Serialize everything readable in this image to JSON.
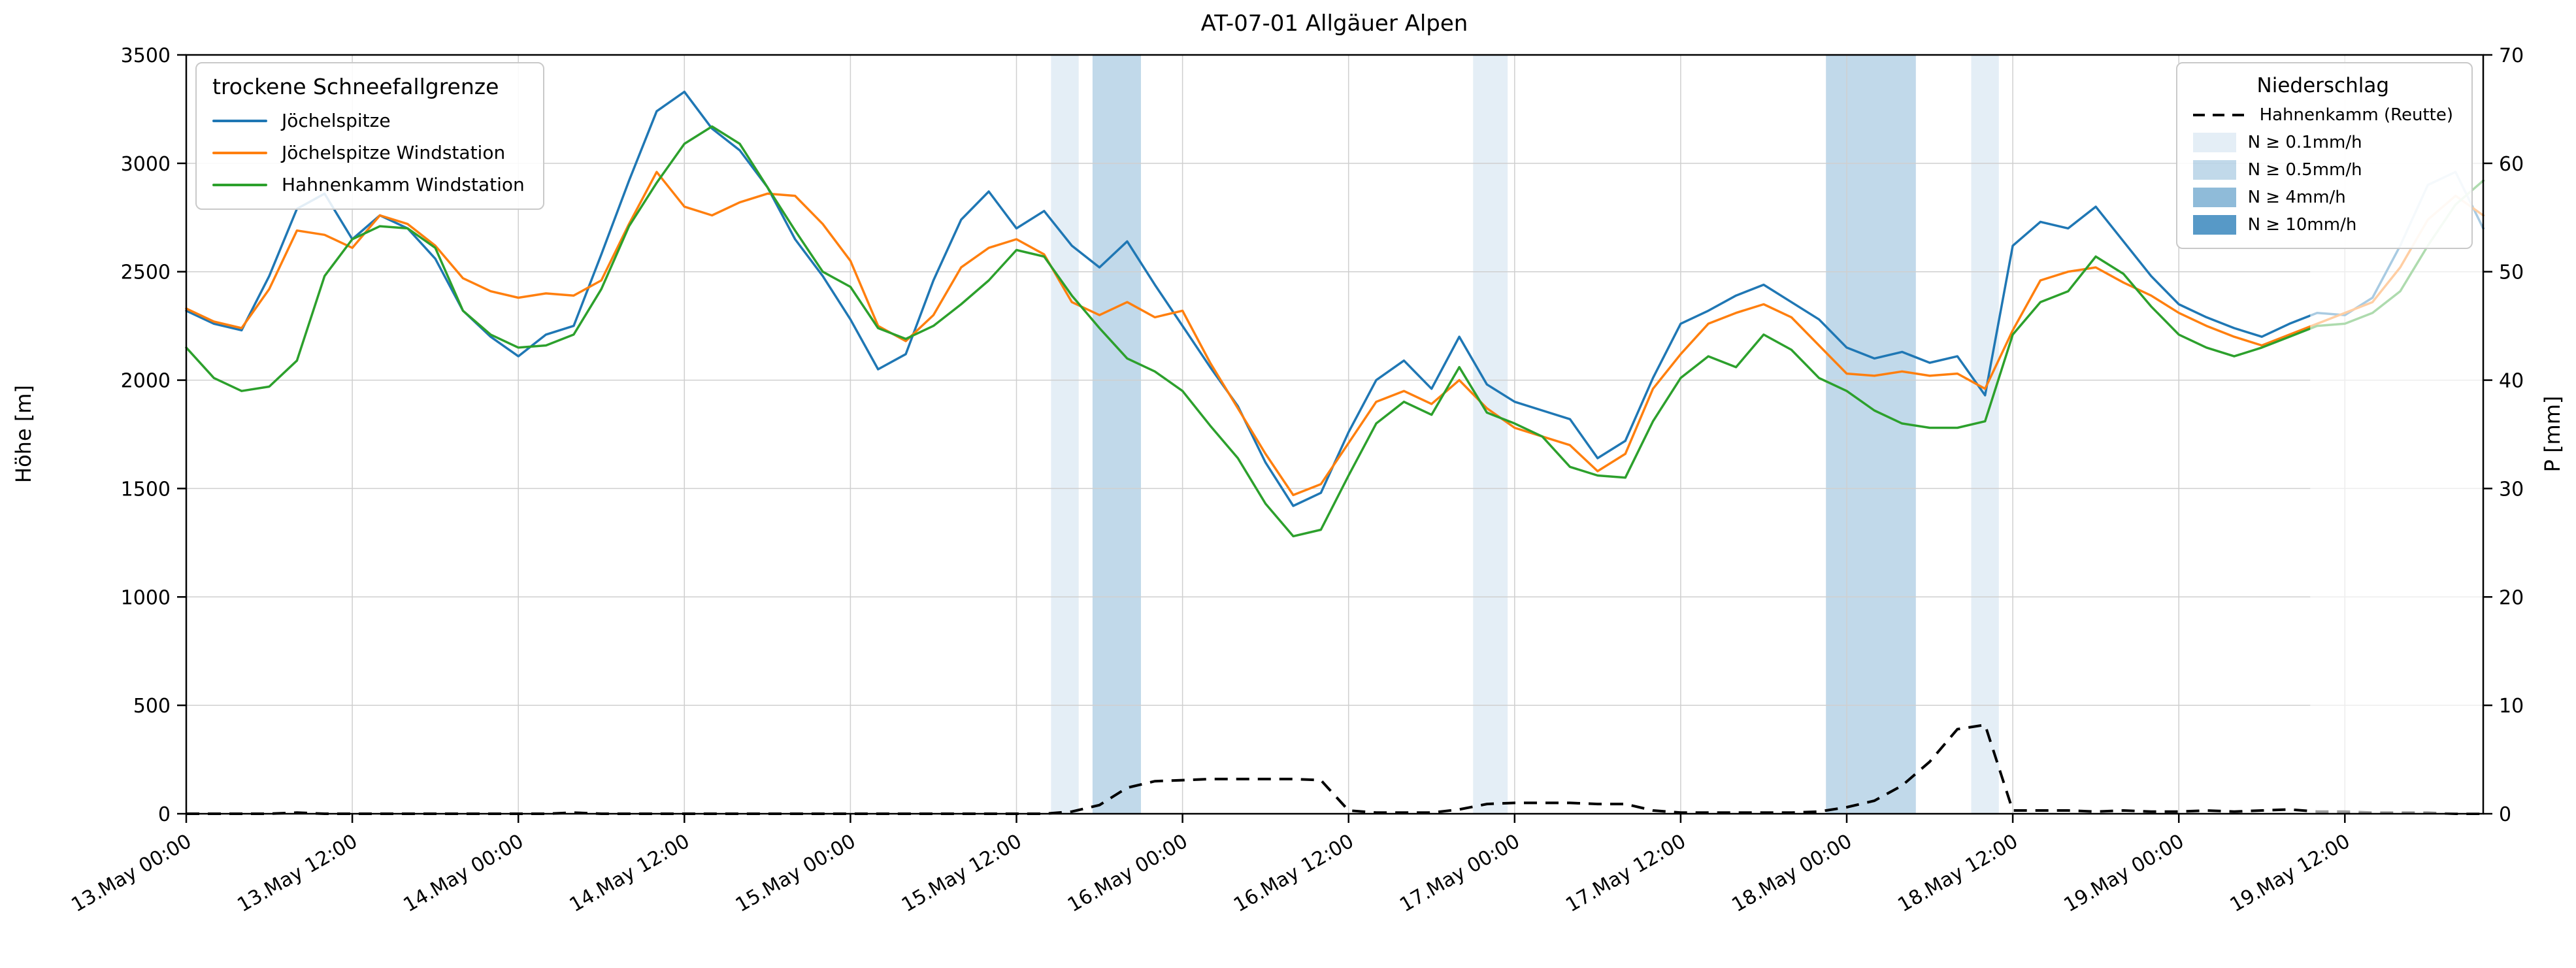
{
  "title": "AT-07-01 Allgäuer Alpen",
  "axes": {
    "x": {
      "tick_hours": [
        0,
        12,
        24,
        36,
        48,
        60,
        72,
        84,
        96,
        108,
        120,
        132,
        144,
        156
      ],
      "tick_labels": [
        "13.May 00:00",
        "13.May 12:00",
        "14.May 00:00",
        "14.May 12:00",
        "15.May 00:00",
        "15.May 12:00",
        "16.May 00:00",
        "16.May 12:00",
        "17.May 00:00",
        "17.May 12:00",
        "18.May 00:00",
        "18.May 12:00",
        "19.May 00:00",
        "19.May 12:00"
      ]
    },
    "y_left": {
      "label": "Höhe [m]",
      "ticks": [
        0,
        500,
        1000,
        1500,
        2000,
        2500,
        3000,
        3500
      ]
    },
    "y_right": {
      "label": "P [mm]",
      "ticks": [
        0,
        10,
        20,
        30,
        40,
        50,
        60,
        70
      ]
    }
  },
  "legend_left": {
    "title": "trockene Schneefallgrenze",
    "entries": [
      {
        "label": "Jöchelspitze",
        "color": "#1f77b4"
      },
      {
        "label": "Jöchelspitze Windstation",
        "color": "#ff7f0e"
      },
      {
        "label": "Hahnenkamm Windstation",
        "color": "#2ca02c"
      }
    ]
  },
  "legend_right": {
    "title": "Niederschlag",
    "entries": [
      {
        "label": "Hahnenkamm (Reutte)",
        "type": "dashed-line",
        "color": "#000000"
      },
      {
        "label": "N ≥ 0.1mm/h",
        "type": "patch",
        "color": "rgba(31,119,180,0.12)"
      },
      {
        "label": "N ≥ 0.5mm/h",
        "type": "patch",
        "color": "rgba(31,119,180,0.28)"
      },
      {
        "label": "N ≥ 4mm/h",
        "type": "patch",
        "color": "rgba(31,119,180,0.50)"
      },
      {
        "label": "N ≥ 10mm/h",
        "type": "patch",
        "color": "rgba(31,119,180,0.75)"
      }
    ]
  },
  "chart_data": {
    "type": "line",
    "title": "AT-07-01 Allgäuer Alpen",
    "xlabel": "",
    "ylabel": "Höhe [m]",
    "ylabel_right": "P [mm]",
    "ylim": [
      0,
      3500
    ],
    "ylim_right": [
      0,
      70
    ],
    "grid": true,
    "x_unit": "hours since 13 May 00:00",
    "x_range_hours": [
      0,
      166
    ],
    "x_hours": [
      0,
      2,
      4,
      6,
      8,
      10,
      12,
      14,
      16,
      18,
      20,
      22,
      24,
      26,
      28,
      30,
      32,
      34,
      36,
      38,
      40,
      42,
      44,
      46,
      48,
      50,
      52,
      54,
      56,
      58,
      60,
      62,
      64,
      66,
      68,
      70,
      72,
      74,
      76,
      78,
      80,
      82,
      84,
      86,
      88,
      90,
      92,
      94,
      96,
      98,
      100,
      102,
      104,
      106,
      108,
      110,
      112,
      114,
      116,
      118,
      120,
      122,
      124,
      126,
      128,
      130,
      132,
      134,
      136,
      138,
      140,
      142,
      144,
      146,
      148,
      150,
      152,
      154,
      156,
      158,
      160,
      162,
      164,
      166
    ],
    "series": [
      {
        "name": "Jöchelspitze",
        "color": "#1f77b4",
        "values": [
          2320,
          2260,
          2230,
          2480,
          2790,
          2860,
          2650,
          2760,
          2700,
          2560,
          2320,
          2200,
          2110,
          2210,
          2250,
          2580,
          2920,
          3240,
          3330,
          3160,
          3060,
          2890,
          2650,
          2480,
          2280,
          2050,
          2120,
          2460,
          2740,
          2870,
          2700,
          2780,
          2620,
          2520,
          2640,
          2440,
          2250,
          2060,
          1880,
          1620,
          1420,
          1480,
          1760,
          2000,
          2090,
          1960,
          2200,
          1980,
          1900,
          1860,
          1820,
          1640,
          1720,
          2010,
          2260,
          2320,
          2390,
          2440,
          2360,
          2280,
          2150,
          2100,
          2130,
          2080,
          2110,
          1930,
          2620,
          2730,
          2700,
          2800,
          2640,
          2480,
          2350,
          2290,
          2240,
          2200,
          2260,
          2310,
          2300,
          2380,
          2620,
          2900,
          2960,
          2700
        ]
      },
      {
        "name": "Jöchelspitze Windstation",
        "color": "#ff7f0e",
        "values": [
          2330,
          2270,
          2240,
          2420,
          2690,
          2670,
          2610,
          2760,
          2720,
          2620,
          2470,
          2410,
          2380,
          2400,
          2390,
          2460,
          2720,
          2960,
          2800,
          2760,
          2820,
          2860,
          2850,
          2720,
          2550,
          2250,
          2180,
          2300,
          2520,
          2610,
          2650,
          2580,
          2360,
          2300,
          2360,
          2290,
          2320,
          2080,
          1870,
          1660,
          1470,
          1520,
          1710,
          1900,
          1950,
          1890,
          2000,
          1870,
          1780,
          1740,
          1700,
          1580,
          1660,
          1960,
          2120,
          2260,
          2310,
          2350,
          2290,
          2160,
          2030,
          2020,
          2040,
          2020,
          2030,
          1960,
          2230,
          2460,
          2500,
          2520,
          2450,
          2390,
          2310,
          2250,
          2200,
          2160,
          2210,
          2260,
          2310,
          2360,
          2520,
          2740,
          2850,
          2760
        ]
      },
      {
        "name": "Hahnenkamm Windstation",
        "color": "#2ca02c",
        "values": [
          2150,
          2010,
          1950,
          1970,
          2090,
          2480,
          2650,
          2710,
          2700,
          2610,
          2320,
          2210,
          2150,
          2160,
          2210,
          2420,
          2710,
          2910,
          3090,
          3170,
          3090,
          2890,
          2690,
          2500,
          2430,
          2240,
          2190,
          2250,
          2350,
          2460,
          2600,
          2570,
          2390,
          2240,
          2100,
          2040,
          1950,
          1790,
          1640,
          1430,
          1280,
          1310,
          1560,
          1800,
          1900,
          1840,
          2060,
          1850,
          1800,
          1740,
          1600,
          1560,
          1550,
          1810,
          2010,
          2110,
          2060,
          2210,
          2140,
          2010,
          1950,
          1860,
          1800,
          1780,
          1780,
          1810,
          2210,
          2360,
          2410,
          2570,
          2490,
          2340,
          2210,
          2150,
          2110,
          2150,
          2200,
          2250,
          2260,
          2310,
          2410,
          2620,
          2810,
          2920
        ]
      }
    ],
    "precip_series": {
      "name": "Hahnenkamm (Reutte)",
      "axis": "right",
      "style": "dashed",
      "color": "#000000",
      "values": [
        0,
        0,
        0,
        0,
        0.1,
        0,
        0,
        0,
        0,
        0,
        0,
        0,
        0,
        0,
        0.1,
        0,
        0,
        0,
        0,
        0,
        0,
        0,
        0,
        0,
        0,
        0,
        0,
        0,
        0,
        0,
        0,
        0,
        0.2,
        0.8,
        2.4,
        3.0,
        3.1,
        3.2,
        3.2,
        3.2,
        3.2,
        3.1,
        0.3,
        0.1,
        0.1,
        0.1,
        0.4,
        0.9,
        1.0,
        1.0,
        1.0,
        0.9,
        0.9,
        0.3,
        0.1,
        0.1,
        0.1,
        0.1,
        0.1,
        0.2,
        0.6,
        1.2,
        2.6,
        4.8,
        7.8,
        8.2,
        0.3,
        0.3,
        0.3,
        0.2,
        0.3,
        0.2,
        0.2,
        0.3,
        0.2,
        0.3,
        0.4,
        0.2,
        0.2,
        0.1,
        0.1,
        0.1,
        0,
        0
      ]
    },
    "precip_bands": [
      {
        "start_hour": 62.5,
        "end_hour": 64.5,
        "level": "N ≥ 0.1mm/h"
      },
      {
        "start_hour": 65.5,
        "end_hour": 69.0,
        "level": "N ≥ 0.5mm/h"
      },
      {
        "start_hour": 93.0,
        "end_hour": 95.5,
        "level": "N ≥ 0.1mm/h"
      },
      {
        "start_hour": 118.5,
        "end_hour": 125.0,
        "level": "N ≥ 0.5mm/h"
      },
      {
        "start_hour": 129.0,
        "end_hour": 131.0,
        "level": "N ≥ 0.1mm/h"
      }
    ],
    "band_colors": {
      "N ≥ 0.1mm/h": "rgba(31,119,180,0.12)",
      "N ≥ 0.5mm/h": "rgba(31,119,180,0.28)",
      "N ≥ 4mm/h": "rgba(31,119,180,0.50)",
      "N ≥ 10mm/h": "rgba(31,119,180,0.75)"
    },
    "fade_overlay": {
      "start_hour": 153.5,
      "end_hour": 166,
      "color": "rgba(255,255,255,0.62)"
    },
    "legend_positions": {
      "snowline_legend": "upper left",
      "precip_legend": "upper right"
    }
  }
}
